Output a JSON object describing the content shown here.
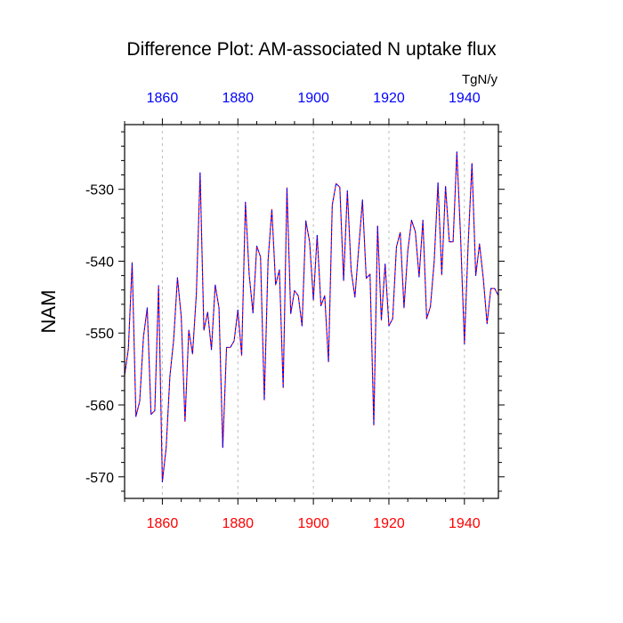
{
  "chart_data": {
    "type": "line",
    "title": "Difference Plot: AM-associated N uptake flux",
    "ylabel": "NAM",
    "units_label": "TgN/y",
    "xlim": [
      1850,
      1949
    ],
    "ylim": [
      -573,
      -521
    ],
    "x_ticks": [
      1860,
      1880,
      1900,
      1920,
      1940
    ],
    "y_ticks": [
      -530,
      -540,
      -550,
      -560,
      -570
    ],
    "grid": "vertical dashed at major x ticks",
    "colors": {
      "bottom_axis_labels": "#ff0000",
      "top_axis_labels": "#0000ff",
      "series_a": "#ff0000",
      "series_b": "#0000ff",
      "axes": "#000000",
      "grid": "#bbbbbb"
    },
    "x": [
      1850,
      1851,
      1852,
      1853,
      1854,
      1855,
      1856,
      1857,
      1858,
      1859,
      1860,
      1861,
      1862,
      1863,
      1864,
      1865,
      1866,
      1867,
      1868,
      1869,
      1870,
      1871,
      1872,
      1873,
      1874,
      1875,
      1876,
      1877,
      1878,
      1879,
      1880,
      1881,
      1882,
      1883,
      1884,
      1885,
      1886,
      1887,
      1888,
      1889,
      1890,
      1891,
      1892,
      1893,
      1894,
      1895,
      1896,
      1897,
      1898,
      1899,
      1900,
      1901,
      1902,
      1903,
      1904,
      1905,
      1906,
      1907,
      1908,
      1909,
      1910,
      1911,
      1912,
      1913,
      1914,
      1915,
      1916,
      1917,
      1918,
      1919,
      1920,
      1921,
      1922,
      1923,
      1924,
      1925,
      1926,
      1927,
      1928,
      1929,
      1930,
      1931,
      1932,
      1933,
      1934,
      1935,
      1936,
      1937,
      1938,
      1939,
      1940,
      1941,
      1942,
      1943,
      1944,
      1945,
      1946,
      1947,
      1948,
      1949
    ],
    "series": [
      {
        "values": [
          -555.9,
          -552.2,
          -540.2,
          -561.6,
          -559.5,
          -550.5,
          -546.5,
          -561.3,
          -560.8,
          -543.4,
          -570.7,
          -566.0,
          -556.0,
          -550.9,
          -542.3,
          -547.7,
          -562.3,
          -549.6,
          -552.9,
          -544.6,
          -527.7,
          -549.6,
          -547.1,
          -552.3,
          -543.3,
          -546.5,
          -565.9,
          -552.0,
          -552.0,
          -551.1,
          -546.8,
          -553.1,
          -531.8,
          -541.9,
          -547.2,
          -537.9,
          -539.4,
          -559.3,
          -539.9,
          -532.8,
          -543.3,
          -541.2,
          -557.6,
          -529.8,
          -547.3,
          -544.1,
          -544.8,
          -549.0,
          -534.4,
          -537.3,
          -545.4,
          -536.4,
          -546.2,
          -544.8,
          -554.0,
          -532.2,
          -529.2,
          -529.7,
          -542.7,
          -530.2,
          -541.3,
          -545.0,
          -538.2,
          -531.5,
          -542.4,
          -541.8,
          -562.8,
          -535.1,
          -548.2,
          -540.4,
          -549.0,
          -548.0,
          -538.0,
          -536.0,
          -546.5,
          -538.6,
          -534.3,
          -535.9,
          -542.2,
          -534.3,
          -548.0,
          -546.3,
          -540.0,
          -529.1,
          -541.9,
          -529.6,
          -537.3,
          -537.3,
          -524.8,
          -536.8,
          -551.5,
          -537.5,
          -526.4,
          -542.0,
          -537.6,
          -542.4,
          -548.7,
          -543.8,
          -543.8,
          -544.8
        ]
      }
    ]
  }
}
